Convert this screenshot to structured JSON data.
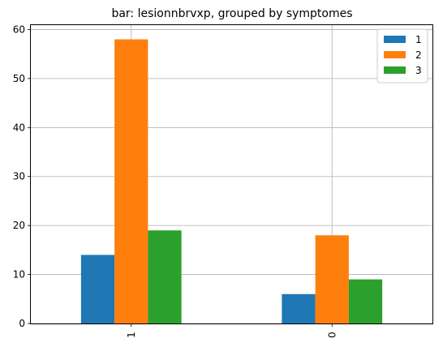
{
  "chart_data": {
    "type": "bar",
    "title": "bar: lesionnbrvxp, grouped by symptomes",
    "xlabel": "",
    "ylabel": "",
    "categories": [
      "1",
      "0"
    ],
    "series": [
      {
        "name": "1",
        "values": [
          14,
          6
        ],
        "color": "#1f77b4"
      },
      {
        "name": "2",
        "values": [
          58,
          18
        ],
        "color": "#ff7f0e"
      },
      {
        "name": "3",
        "values": [
          19,
          9
        ],
        "color": "#2ca02c"
      }
    ],
    "ylim": [
      0,
      60.9
    ],
    "yticks": [
      "0",
      "10",
      "20",
      "30",
      "40",
      "50",
      "60"
    ],
    "grid": true,
    "legend_position": "top-right"
  }
}
